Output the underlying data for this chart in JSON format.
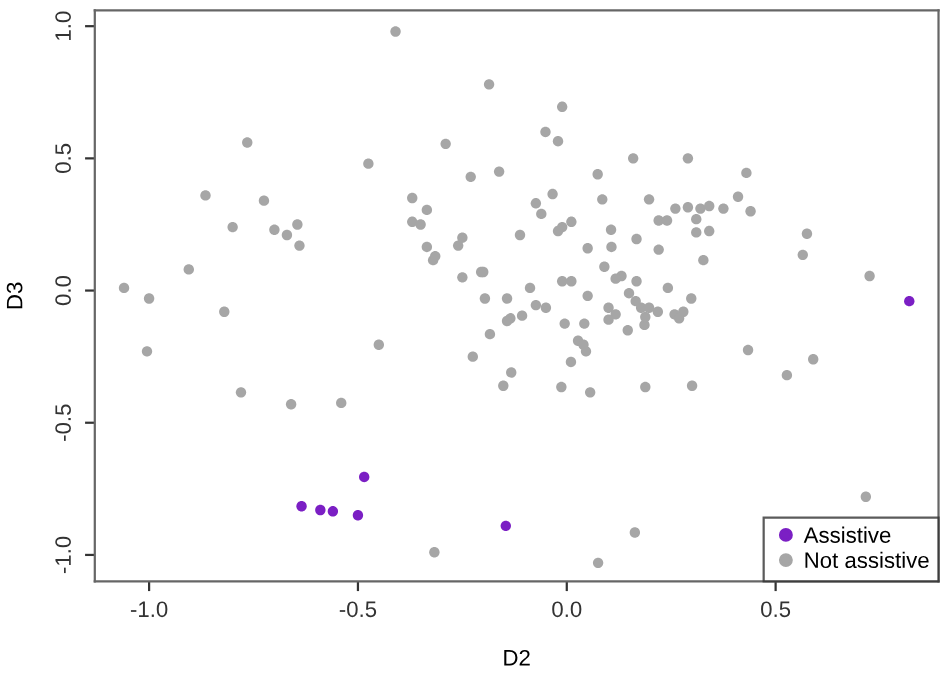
{
  "chart_data": {
    "type": "scatter",
    "xlabel": "D2",
    "ylabel": "D3",
    "xlim": [
      -1.13,
      0.89
    ],
    "ylim": [
      -1.1,
      1.06
    ],
    "xticks": [
      {
        "value": -1.0,
        "label": "-1.0"
      },
      {
        "value": -0.5,
        "label": "-0.5"
      },
      {
        "value": 0.0,
        "label": "0.0"
      },
      {
        "value": 0.5,
        "label": "0.5"
      }
    ],
    "yticks": [
      {
        "value": -1.0,
        "label": "-1.0"
      },
      {
        "value": -0.5,
        "label": "-0.5"
      },
      {
        "value": 0.0,
        "label": "0.0"
      },
      {
        "value": 0.5,
        "label": "0.5"
      },
      {
        "value": 1.0,
        "label": "1.0"
      }
    ],
    "grid": false,
    "legend": "bottom right",
    "marker": "circle",
    "series": [
      {
        "name": "Assistive",
        "color": "#7b1fc4",
        "x": [
          -0.635,
          -0.59,
          -0.56,
          -0.5,
          -0.485,
          -0.146,
          0.82
        ],
        "values": [
          -0.816,
          -0.83,
          -0.835,
          -0.85,
          -0.705,
          -0.89,
          -0.04
        ]
      },
      {
        "name": "Not assistive",
        "color": "#a6a6a6",
        "x": [
          -1.06,
          -1.0,
          -0.905,
          -0.865,
          -0.765,
          -0.82,
          -0.8,
          -0.725,
          -0.7,
          -0.67,
          -0.645,
          -0.64,
          -0.475,
          -0.41,
          -0.29,
          -0.37,
          -0.37,
          -0.35,
          -0.335,
          -0.335,
          -0.32,
          -0.315,
          -0.23,
          -0.26,
          -0.25,
          -0.25,
          -0.205,
          -1.005,
          -0.78,
          -0.66,
          -0.54,
          -0.45,
          -0.225,
          -0.317,
          -0.186,
          -0.011,
          -0.051,
          -0.021,
          0.159,
          0.29,
          0.43,
          -0.162,
          0.074,
          0.085,
          0.197,
          -0.074,
          -0.061,
          -0.034,
          0.011,
          -0.011,
          -0.021,
          -0.112,
          0.106,
          0.22,
          0.24,
          0.26,
          0.29,
          0.31,
          0.32,
          0.341,
          0.375,
          0.41,
          0.44,
          0.31,
          0.341,
          0.575,
          0.565,
          0.725,
          0.05,
          0.107,
          0.167,
          0.22,
          0.327,
          -0.2,
          0.09,
          0.131,
          0.117,
          0.167,
          -0.011,
          0.011,
          -0.088,
          0.242,
          -0.196,
          -0.143,
          0.05,
          -0.074,
          -0.05,
          0.149,
          0.165,
          0.178,
          0.197,
          0.218,
          0.1,
          0.117,
          0.298,
          0.279,
          0.258,
          -0.135,
          -0.107,
          -0.143,
          -0.184,
          -0.133,
          -0.152,
          -0.013,
          0.056,
          0.188,
          0.3,
          0.01,
          0.027,
          0.04,
          0.046,
          -0.005,
          0.042,
          0.1,
          0.146,
          0.186,
          0.188,
          0.269,
          0.434,
          0.527,
          0.59,
          0.716,
          0.163,
          0.075
        ],
        "values": [
          0.01,
          -0.03,
          0.08,
          0.36,
          0.56,
          -0.08,
          0.24,
          0.34,
          0.23,
          0.21,
          0.25,
          0.17,
          0.48,
          0.98,
          0.555,
          0.35,
          0.26,
          0.25,
          0.305,
          0.165,
          0.115,
          0.13,
          0.43,
          0.17,
          0.2,
          0.05,
          0.07,
          -0.23,
          -0.385,
          -0.43,
          -0.425,
          -0.205,
          -0.25,
          -0.99,
          0.78,
          0.695,
          0.6,
          0.565,
          0.5,
          0.5,
          0.445,
          0.45,
          0.44,
          0.345,
          0.345,
          0.33,
          0.29,
          0.365,
          0.26,
          0.24,
          0.225,
          0.21,
          0.23,
          0.265,
          0.265,
          0.31,
          0.315,
          0.27,
          0.31,
          0.32,
          0.31,
          0.355,
          0.3,
          0.22,
          0.225,
          0.215,
          0.135,
          0.055,
          0.16,
          0.165,
          0.195,
          0.155,
          0.115,
          0.07,
          0.09,
          0.055,
          0.045,
          0.035,
          0.035,
          0.035,
          0.01,
          0.01,
          -0.03,
          -0.03,
          -0.02,
          -0.055,
          -0.065,
          -0.01,
          -0.04,
          -0.065,
          -0.065,
          -0.08,
          -0.065,
          -0.09,
          -0.03,
          -0.08,
          -0.09,
          -0.105,
          -0.095,
          -0.115,
          -0.165,
          -0.31,
          -0.36,
          -0.365,
          -0.385,
          -0.365,
          -0.36,
          -0.27,
          -0.19,
          -0.205,
          -0.23,
          -0.125,
          -0.125,
          -0.11,
          -0.15,
          -0.13,
          -0.1,
          -0.105,
          -0.225,
          -0.32,
          -0.26,
          -0.78,
          -0.915,
          -1.03
        ]
      }
    ]
  }
}
